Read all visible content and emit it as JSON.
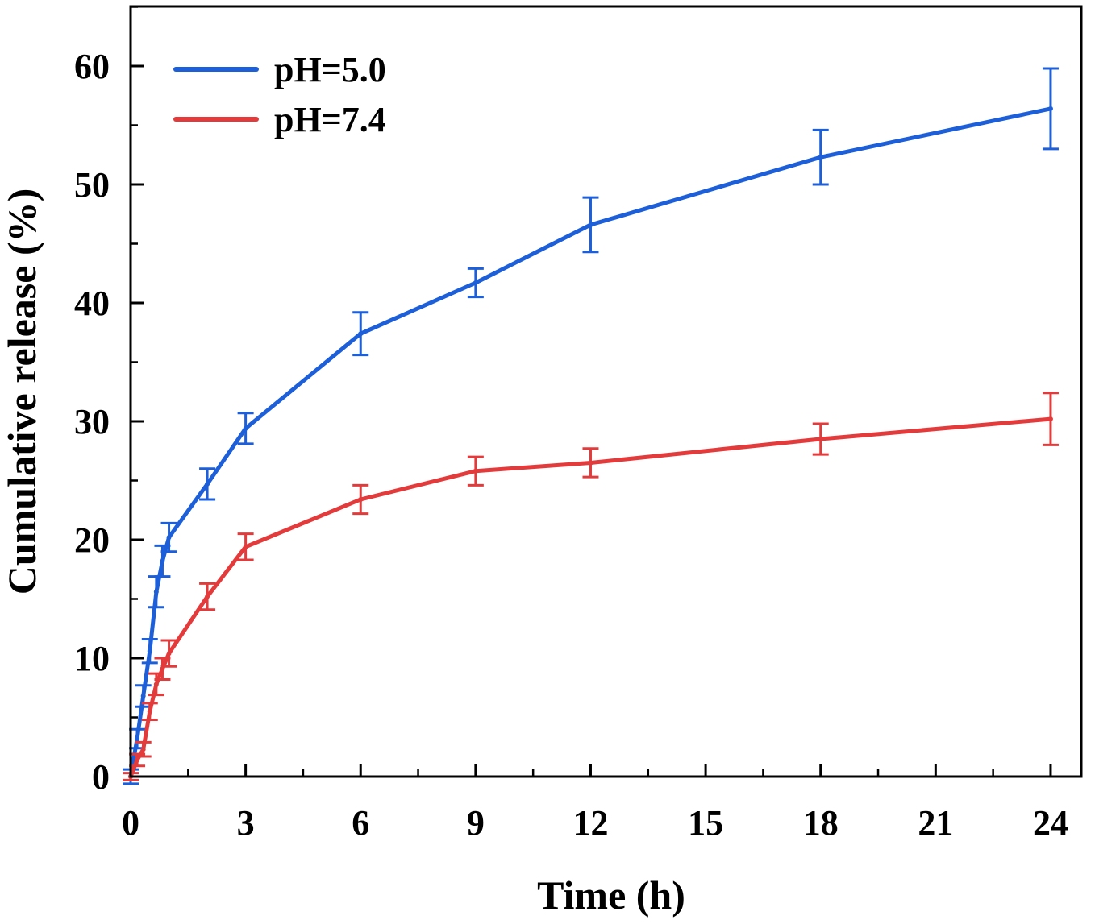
{
  "chart_data": {
    "type": "line",
    "title": "",
    "xlabel": "Time (h)",
    "ylabel": "Cumulative release (%)",
    "xlim": [
      0,
      25
    ],
    "ylim": [
      0,
      65
    ],
    "xticks": [
      0,
      3,
      6,
      9,
      12,
      15,
      18,
      21,
      24
    ],
    "xtick_labels": [
      "0",
      "3",
      "6",
      "9",
      "12",
      "15",
      "18",
      "21",
      "24"
    ],
    "yticks": [
      0,
      10,
      20,
      30,
      40,
      50,
      60
    ],
    "ytick_labels": [
      "0",
      "10",
      "20",
      "30",
      "40",
      "50",
      "60"
    ],
    "grid": false,
    "legend_position": "top-left",
    "series": [
      {
        "name": "pH=5.0",
        "color": "#1c5fd8",
        "x": [
          0,
          0.17,
          0.33,
          0.5,
          0.67,
          0.83,
          1,
          2,
          3,
          6,
          9,
          12,
          18,
          24
        ],
        "y": [
          0,
          3.2,
          6.8,
          10.6,
          15.6,
          18.2,
          20.2,
          24.7,
          29.4,
          37.4,
          41.7,
          46.6,
          52.3,
          56.4
        ],
        "err": [
          0.6,
          0.8,
          0.9,
          1.0,
          1.3,
          1.3,
          1.2,
          1.3,
          1.3,
          1.8,
          1.2,
          2.3,
          2.3,
          3.4
        ]
      },
      {
        "name": "pH=7.4",
        "color": "#e33b3b",
        "x": [
          0,
          0.17,
          0.33,
          0.5,
          0.67,
          0.83,
          1,
          2,
          3,
          6,
          9,
          12,
          18,
          24
        ],
        "y": [
          0,
          1.4,
          2.3,
          5.5,
          7.8,
          9.1,
          10.4,
          15.2,
          19.4,
          23.4,
          25.8,
          26.5,
          28.5,
          30.2
        ],
        "err": [
          0.3,
          0.5,
          0.6,
          0.7,
          0.9,
          0.9,
          1.1,
          1.1,
          1.1,
          1.2,
          1.2,
          1.2,
          1.3,
          2.2
        ]
      }
    ]
  }
}
